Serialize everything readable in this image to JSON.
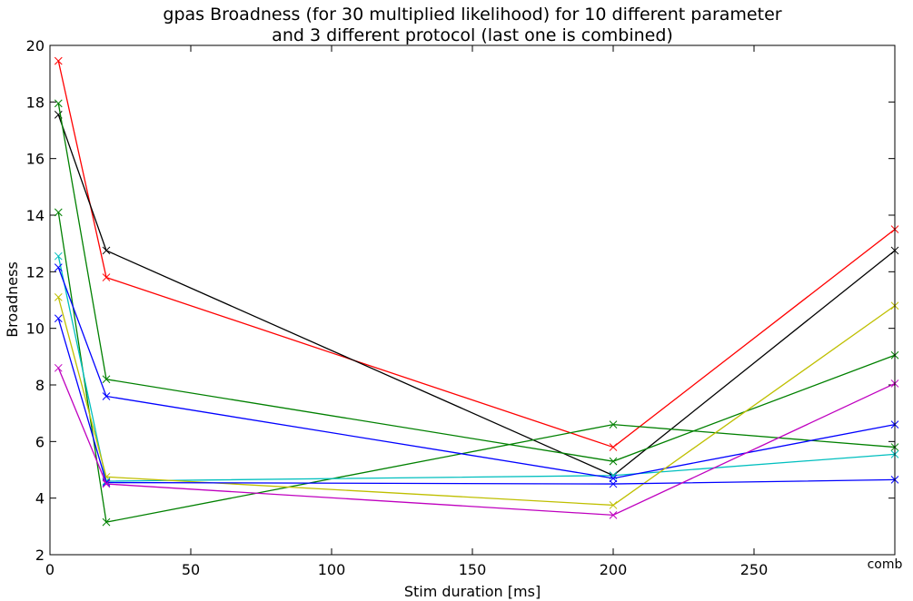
{
  "chart_data": {
    "type": "line",
    "title": [
      "gpas Broadness (for 30 multiplied likelihood) for 10 different parameter",
      "and 3 different protocol (last one is combined)"
    ],
    "xlabel": "Stim duration [ms]",
    "ylabel": "Broadness",
    "xlim": [
      0,
      300
    ],
    "ylim": [
      2,
      20
    ],
    "x": [
      3,
      20,
      200,
      300
    ],
    "x_ticks": [
      0,
      50,
      100,
      150,
      200,
      250
    ],
    "x_tick_labels": [
      "0",
      "50",
      "100",
      "150",
      "200",
      "250"
    ],
    "extra_x_label": "comb",
    "y_ticks": [
      2,
      4,
      6,
      8,
      10,
      12,
      14,
      16,
      18,
      20
    ],
    "marker": "x",
    "grid": false,
    "series": [
      {
        "color": "#ff0000",
        "values": [
          19.45,
          11.8,
          5.8,
          13.5
        ]
      },
      {
        "color": "#000000",
        "values": [
          17.55,
          12.75,
          4.8,
          12.75
        ]
      },
      {
        "color": "#008000",
        "values": [
          17.95,
          8.2,
          5.3,
          9.05
        ]
      },
      {
        "color": "#008000",
        "values": [
          14.1,
          3.15,
          6.6,
          5.8
        ]
      },
      {
        "color": "#00bfbf",
        "values": [
          12.55,
          4.6,
          4.8,
          5.55
        ]
      },
      {
        "color": "#0000ff",
        "values": [
          12.15,
          7.6,
          4.7,
          6.6
        ]
      },
      {
        "color": "#bfbf00",
        "values": [
          11.1,
          4.75,
          3.75,
          10.8
        ]
      },
      {
        "color": "#0000ff",
        "values": [
          10.35,
          4.55,
          4.5,
          4.65
        ]
      },
      {
        "color": "#bf00bf",
        "values": [
          8.6,
          4.5,
          3.4,
          8.05
        ]
      }
    ]
  }
}
